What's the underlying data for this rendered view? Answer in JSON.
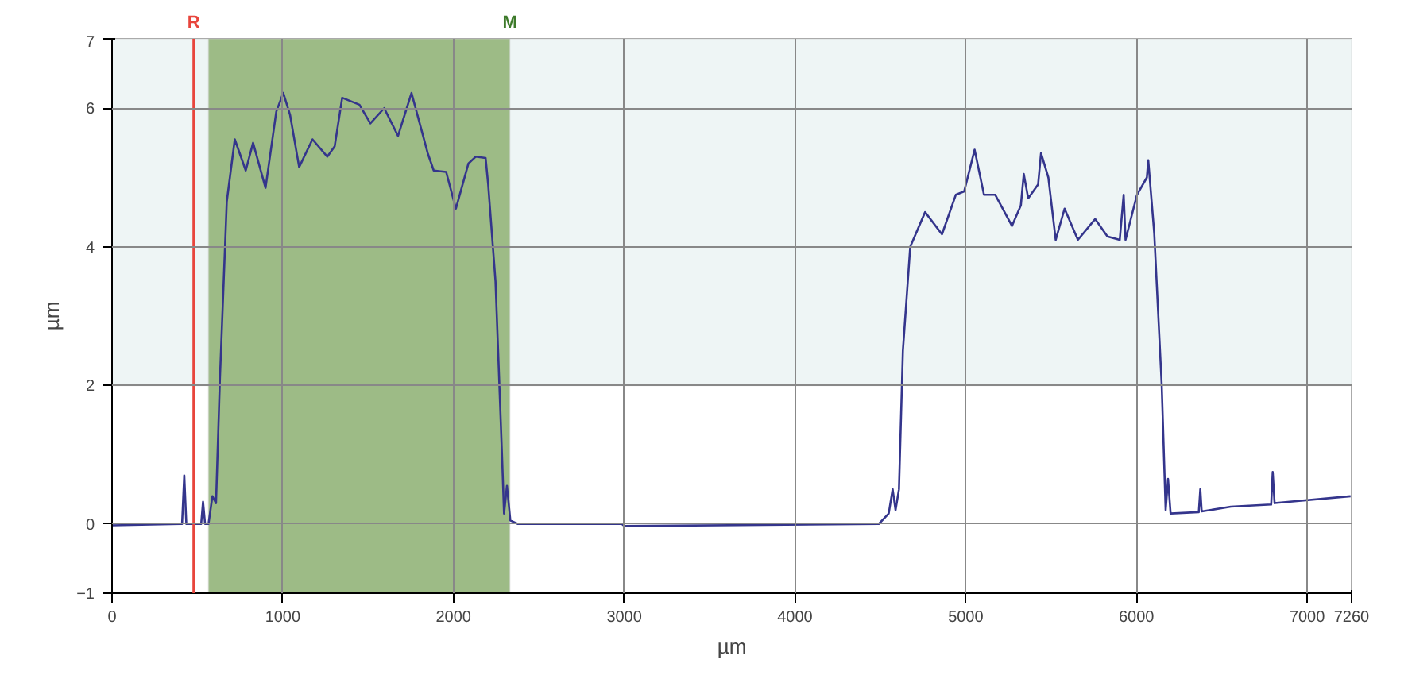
{
  "chart_data": {
    "type": "line",
    "xlabel": "µm",
    "ylabel": "µm",
    "xlim": [
      0,
      7260
    ],
    "ylim": [
      -1,
      7
    ],
    "xticks": [
      0,
      1000,
      2000,
      3000,
      4000,
      5000,
      6000,
      7000,
      {
        "value": 7260,
        "label": "7260"
      }
    ],
    "yticks": [
      -1,
      0,
      2,
      4,
      6,
      7
    ],
    "grid": true,
    "marker": "none",
    "line_style": "solid",
    "ref_lines": [
      {
        "axis": "x",
        "value": 478,
        "label": "R",
        "color": "#e8453c"
      }
    ],
    "bands": [
      {
        "axis": "y",
        "from": 2,
        "to": 7,
        "label": null,
        "color": "#eef5f5"
      },
      {
        "axis": "x",
        "from": 565,
        "to": 2330,
        "label": "M",
        "color": "#9dbb86"
      }
    ],
    "series": [
      {
        "color": "#34358c",
        "x": [
          0,
          400,
          410,
          423,
          435,
          522,
          533,
          545,
          565,
          588,
          609,
          632,
          672,
          719,
          783,
          826,
          899,
          962,
          1003,
          1043,
          1096,
          1174,
          1261,
          1304,
          1348,
          1449,
          1513,
          1594,
          1675,
          1754,
          1849,
          1884,
          1957,
          2014,
          2087,
          2130,
          2188,
          2203,
          2246,
          2284,
          2296,
          2313,
          2333,
          2377,
          2986,
          3000,
          4491,
          4549,
          4572,
          4589,
          4609,
          4632,
          4675,
          4762,
          4861,
          4942,
          4991,
          5052,
          5107,
          5173,
          5271,
          5323,
          5340,
          5366,
          5424,
          5441,
          5484,
          5527,
          5579,
          5657,
          5758,
          5830,
          5902,
          5925,
          5936,
          6003,
          6061,
          6069,
          6104,
          6148,
          6171,
          6185,
          6200,
          6365,
          6374,
          6382,
          6553,
          6789,
          6798,
          6809,
          7254
        ],
        "values": [
          -0.02,
          0,
          0,
          0.7,
          0,
          0,
          0.32,
          0,
          0,
          0.4,
          0.3,
          2.1,
          4.65,
          5.55,
          5.1,
          5.5,
          4.85,
          5.95,
          6.22,
          5.9,
          5.15,
          5.55,
          5.3,
          5.45,
          6.15,
          6.05,
          5.78,
          6.0,
          5.6,
          6.22,
          5.35,
          5.1,
          5.08,
          4.55,
          5.2,
          5.3,
          5.28,
          4.9,
          3.5,
          1.0,
          0.15,
          0.55,
          0.05,
          0,
          0,
          -0.03,
          0,
          0.15,
          0.5,
          0.2,
          0.5,
          2.5,
          4.0,
          4.5,
          4.18,
          4.75,
          4.8,
          5.4,
          4.75,
          4.75,
          4.3,
          4.6,
          5.05,
          4.7,
          4.9,
          5.35,
          5.0,
          4.1,
          4.55,
          4.1,
          4.4,
          4.15,
          4.1,
          4.75,
          4.1,
          4.75,
          5.0,
          5.25,
          4.2,
          2.0,
          0.2,
          0.65,
          0.15,
          0.17,
          0.5,
          0.18,
          0.25,
          0.28,
          0.75,
          0.3,
          0.4
        ]
      }
    ]
  }
}
